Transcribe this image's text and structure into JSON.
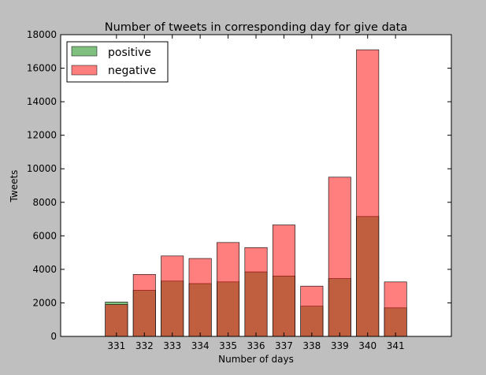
{
  "chart_data": {
    "type": "bar",
    "title": "Number of tweets in corresponding day for give data",
    "xlabel": "Number of days",
    "ylabel": "Tweets",
    "categories": [
      "331",
      "332",
      "333",
      "334",
      "335",
      "336",
      "337",
      "338",
      "339",
      "340",
      "341"
    ],
    "x": [
      331,
      332,
      333,
      334,
      335,
      336,
      337,
      338,
      339,
      340,
      341
    ],
    "xlim": [
      329,
      343
    ],
    "ylim": [
      0,
      18000
    ],
    "yticks": [
      0,
      2000,
      4000,
      6000,
      8000,
      10000,
      12000,
      14000,
      16000,
      18000
    ],
    "grid": false,
    "legend_position": "top-left",
    "series": [
      {
        "name": "positive",
        "color": "#008000",
        "values": [
          2050,
          2750,
          3300,
          3150,
          3250,
          3850,
          3600,
          1800,
          3450,
          7150,
          1700
        ]
      },
      {
        "name": "negative",
        "color": "#ff0000",
        "values": [
          1900,
          3700,
          4800,
          4650,
          5600,
          5300,
          6650,
          3000,
          9500,
          17100,
          3250
        ]
      }
    ]
  }
}
